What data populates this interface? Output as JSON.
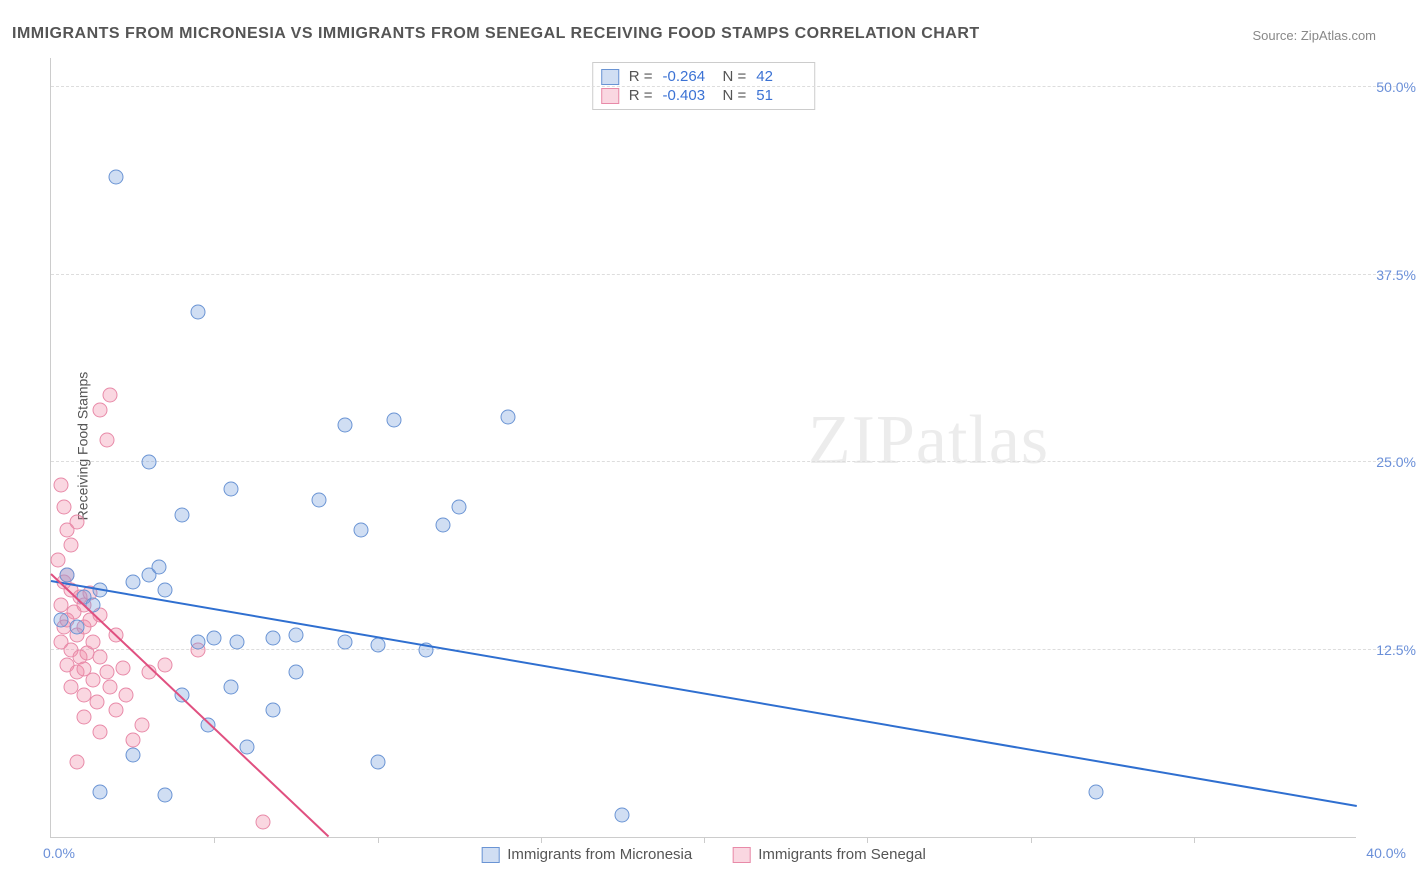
{
  "title": "IMMIGRANTS FROM MICRONESIA VS IMMIGRANTS FROM SENEGAL RECEIVING FOOD STAMPS CORRELATION CHART",
  "source": "Source: ZipAtlas.com",
  "ylabel": "Receiving Food Stamps",
  "watermark": "ZIPatlas",
  "chart": {
    "type": "scatter",
    "xlim": [
      0,
      40
    ],
    "ylim": [
      0,
      52
    ],
    "x_origin_label": "0.0%",
    "x_end_label": "40.0%",
    "x_tick_step": 5,
    "y_gridlines": [
      12.5,
      25.0,
      37.5,
      50.0
    ],
    "y_tick_labels": [
      "12.5%",
      "25.0%",
      "37.5%",
      "50.0%"
    ],
    "grid_color": "#dddddd",
    "axis_color": "#cccccc",
    "background_color": "#ffffff",
    "tick_label_color": "#6a8fd8",
    "marker_radius": 7.5
  },
  "series": [
    {
      "name": "Immigrants from Micronesia",
      "fill": "rgba(120,160,220,0.35)",
      "stroke": "#6a94d4",
      "trend_color": "#2f6fd0",
      "R": "-0.264",
      "N": "42",
      "trend": {
        "x1": 0,
        "y1": 17.0,
        "x2": 40,
        "y2": 2.0
      },
      "points": [
        [
          2.0,
          44.0
        ],
        [
          4.5,
          35.0
        ],
        [
          3.0,
          25.0
        ],
        [
          9.0,
          27.5
        ],
        [
          10.5,
          27.8
        ],
        [
          12.5,
          22.0
        ],
        [
          5.5,
          23.2
        ],
        [
          14.0,
          28.0
        ],
        [
          0.5,
          17.5
        ],
        [
          1.0,
          16.0
        ],
        [
          1.3,
          15.5
        ],
        [
          2.5,
          17.0
        ],
        [
          3.0,
          17.5
        ],
        [
          3.5,
          16.5
        ],
        [
          4.5,
          13.0
        ],
        [
          5.0,
          13.3
        ],
        [
          5.7,
          13.0
        ],
        [
          6.8,
          13.3
        ],
        [
          7.5,
          13.5
        ],
        [
          4.0,
          21.5
        ],
        [
          3.3,
          18.0
        ],
        [
          8.2,
          22.5
        ],
        [
          9.5,
          20.5
        ],
        [
          12.0,
          20.8
        ],
        [
          9.0,
          13.0
        ],
        [
          10.0,
          12.8
        ],
        [
          11.5,
          12.5
        ],
        [
          4.0,
          9.5
        ],
        [
          4.8,
          7.5
        ],
        [
          5.5,
          10.0
        ],
        [
          6.0,
          6.0
        ],
        [
          6.8,
          8.5
        ],
        [
          7.5,
          11.0
        ],
        [
          10.0,
          5.0
        ],
        [
          1.5,
          3.0
        ],
        [
          2.5,
          5.5
        ],
        [
          3.5,
          2.8
        ],
        [
          32.0,
          3.0
        ],
        [
          17.5,
          1.5
        ],
        [
          0.8,
          14.0
        ],
        [
          1.5,
          16.5
        ],
        [
          0.3,
          14.5
        ]
      ]
    },
    {
      "name": "Immigrants from Senegal",
      "fill": "rgba(240,140,170,0.35)",
      "stroke": "#e88aa8",
      "trend_color": "#e05080",
      "R": "-0.403",
      "N": "51",
      "trend": {
        "x1": 0,
        "y1": 17.5,
        "x2": 8.5,
        "y2": 0
      },
      "points": [
        [
          0.3,
          23.5
        ],
        [
          0.4,
          22.0
        ],
        [
          0.5,
          20.5
        ],
        [
          0.6,
          19.5
        ],
        [
          0.2,
          18.5
        ],
        [
          1.5,
          28.5
        ],
        [
          1.8,
          29.5
        ],
        [
          1.7,
          26.5
        ],
        [
          0.8,
          21.0
        ],
        [
          0.4,
          17.0
        ],
        [
          0.5,
          17.5
        ],
        [
          0.6,
          16.5
        ],
        [
          0.3,
          15.5
        ],
        [
          0.7,
          15.0
        ],
        [
          0.9,
          16.0
        ],
        [
          1.0,
          15.5
        ],
        [
          1.2,
          16.3
        ],
        [
          0.5,
          14.5
        ],
        [
          0.4,
          14.0
        ],
        [
          0.8,
          13.5
        ],
        [
          1.0,
          14.0
        ],
        [
          1.2,
          14.5
        ],
        [
          1.5,
          14.8
        ],
        [
          0.3,
          13.0
        ],
        [
          0.6,
          12.5
        ],
        [
          0.9,
          12.0
        ],
        [
          1.1,
          12.3
        ],
        [
          1.3,
          13.0
        ],
        [
          1.5,
          12.0
        ],
        [
          2.0,
          13.5
        ],
        [
          0.5,
          11.5
        ],
        [
          0.8,
          11.0
        ],
        [
          1.0,
          11.2
        ],
        [
          1.3,
          10.5
        ],
        [
          1.7,
          11.0
        ],
        [
          2.2,
          11.3
        ],
        [
          0.6,
          10.0
        ],
        [
          1.0,
          9.5
        ],
        [
          1.4,
          9.0
        ],
        [
          1.8,
          10.0
        ],
        [
          2.3,
          9.5
        ],
        [
          3.0,
          11.0
        ],
        [
          3.5,
          11.5
        ],
        [
          1.0,
          8.0
        ],
        [
          1.5,
          7.0
        ],
        [
          2.0,
          8.5
        ],
        [
          2.5,
          6.5
        ],
        [
          2.8,
          7.5
        ],
        [
          0.8,
          5.0
        ],
        [
          4.5,
          12.5
        ],
        [
          6.5,
          1.0
        ]
      ]
    }
  ],
  "stats_box": {
    "rows": [
      {
        "swatch_fill": "rgba(120,160,220,0.35)",
        "swatch_border": "#6a94d4",
        "R_label": "R =",
        "R": "-0.264",
        "N_label": "N =",
        "N": "42"
      },
      {
        "swatch_fill": "rgba(240,140,170,0.35)",
        "swatch_border": "#e88aa8",
        "R_label": "R =",
        "R": "-0.403",
        "N_label": "N =",
        "N": "51"
      }
    ]
  },
  "legend": {
    "items": [
      {
        "swatch_fill": "rgba(120,160,220,0.35)",
        "swatch_border": "#6a94d4",
        "label": "Immigrants from Micronesia"
      },
      {
        "swatch_fill": "rgba(240,140,170,0.35)",
        "swatch_border": "#e88aa8",
        "label": "Immigrants from Senegal"
      }
    ]
  }
}
